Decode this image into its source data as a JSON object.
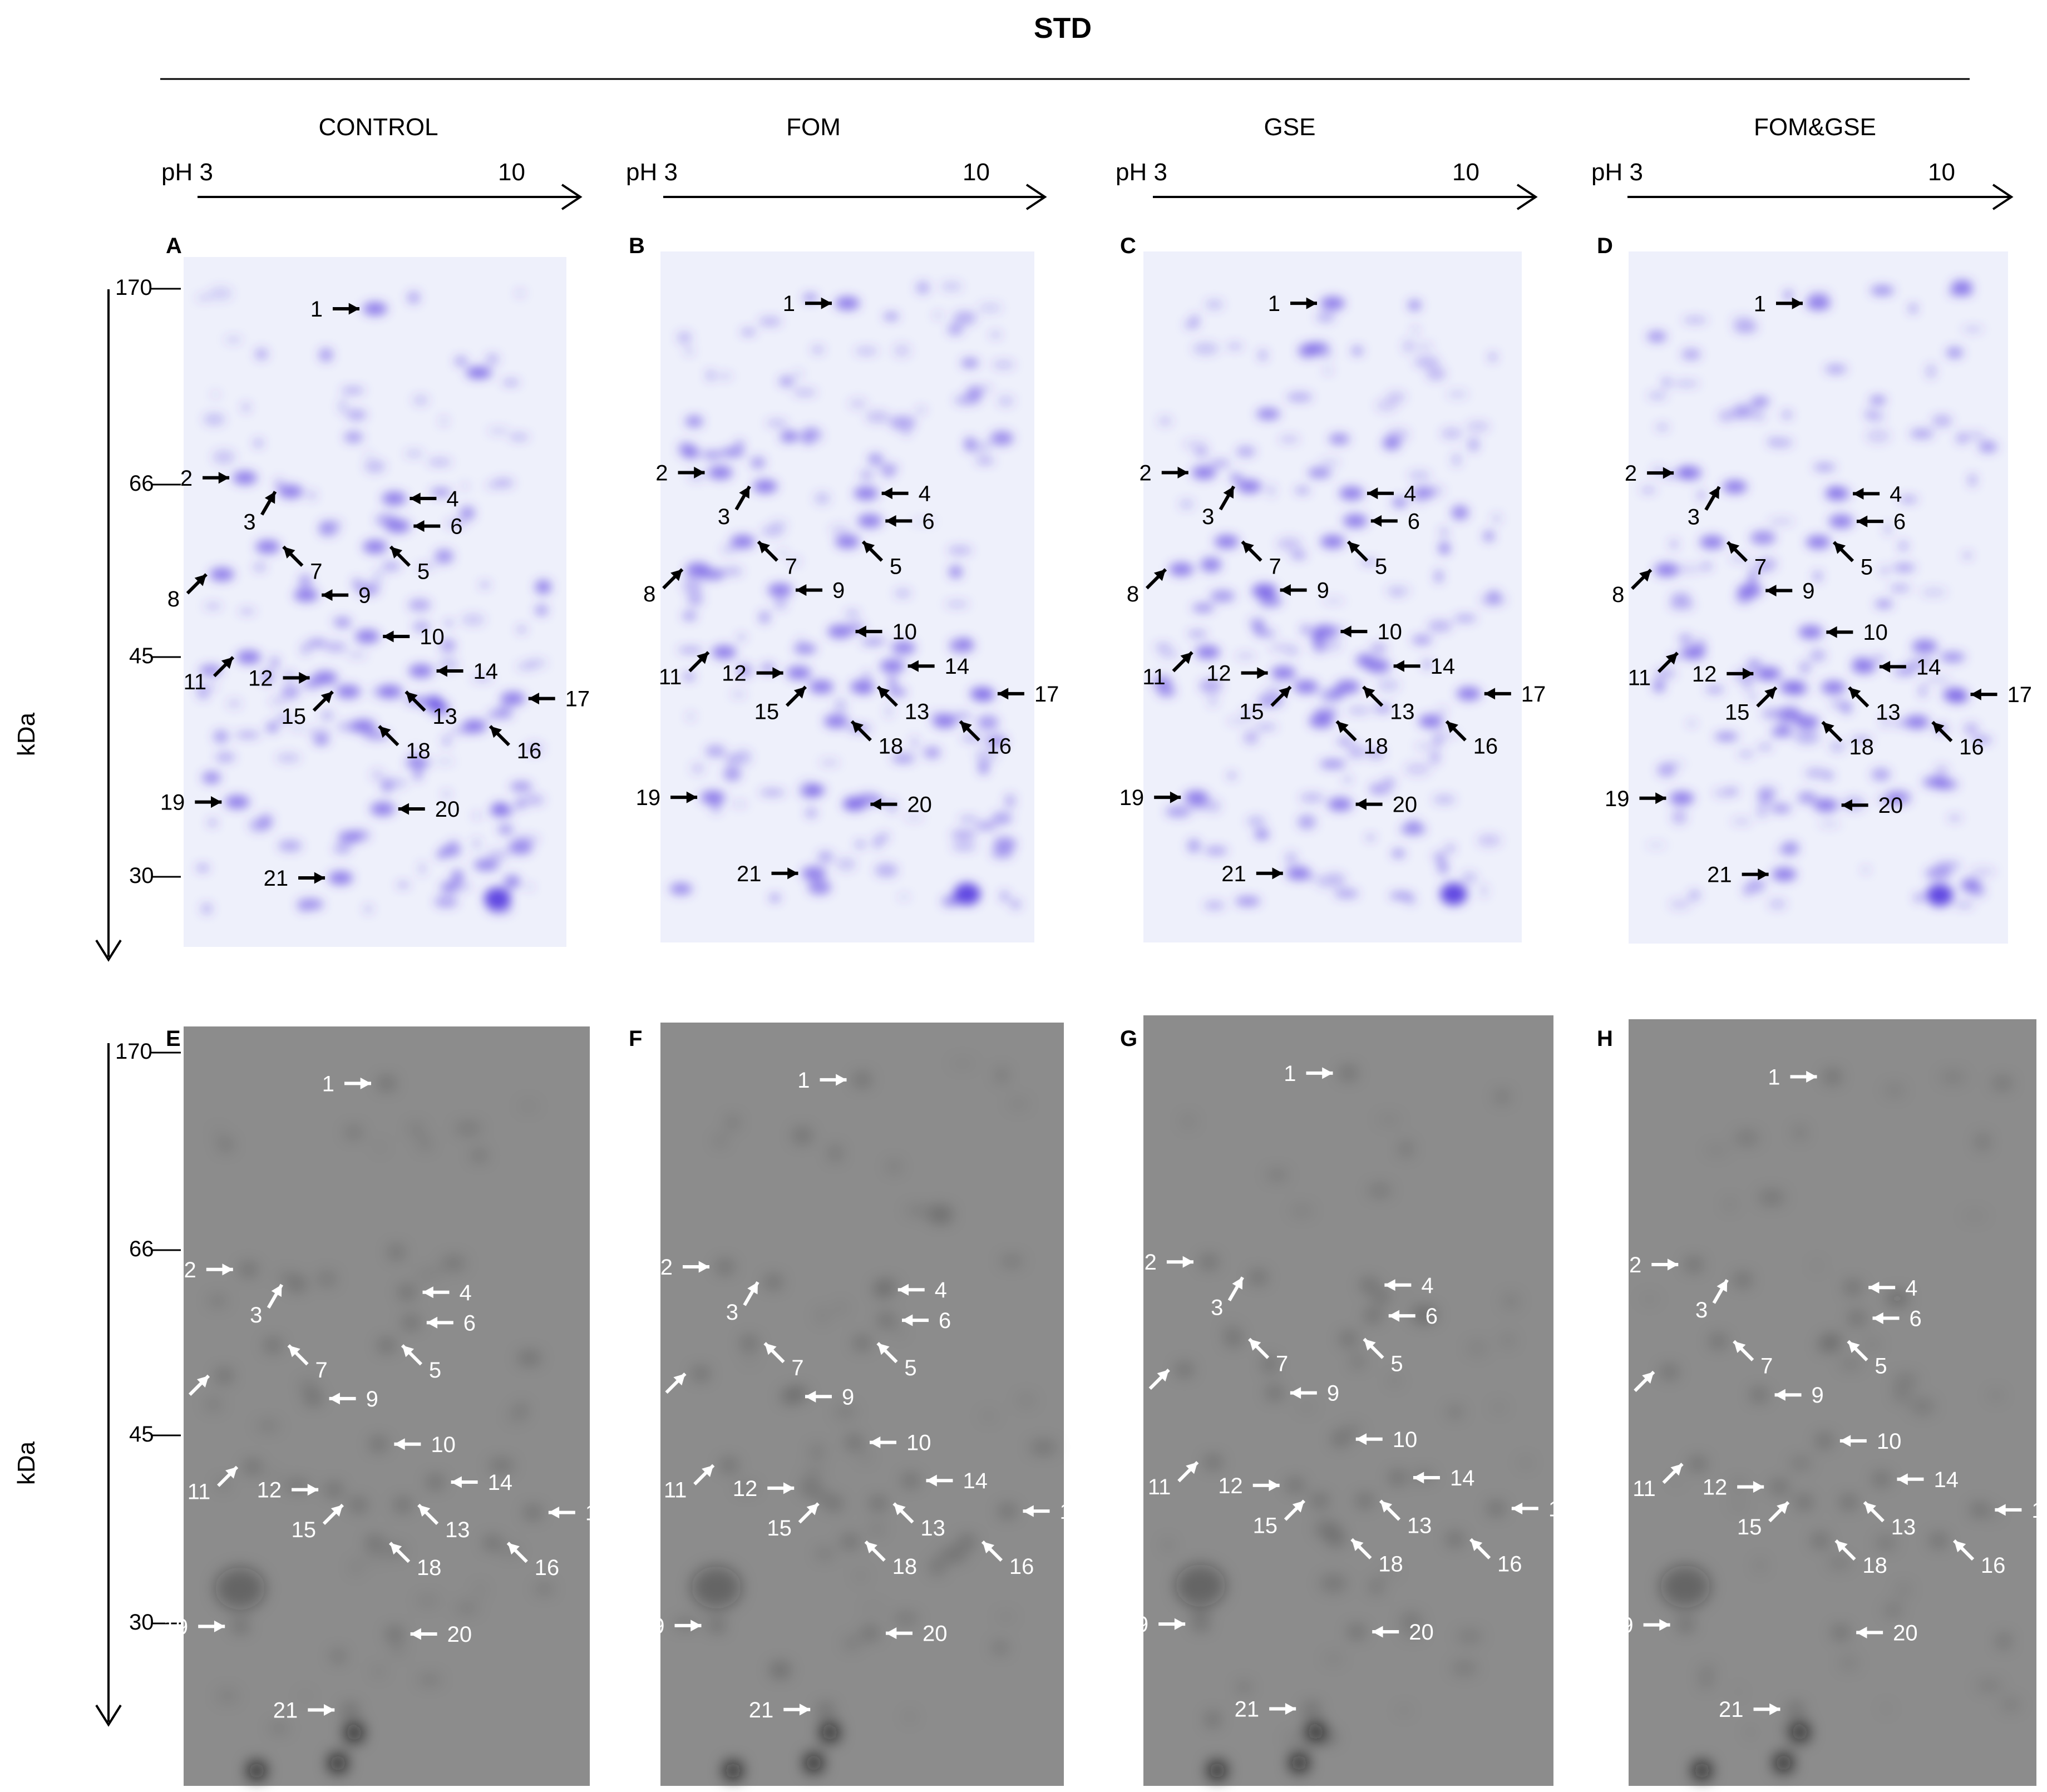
{
  "figure": {
    "title": "STD",
    "ph_start": "pH 3",
    "ph_end": "10",
    "kda_label": "kDa",
    "mw_markers": [
      "170",
      "66",
      "45",
      "30"
    ],
    "panels": [
      {
        "letter": "A",
        "label": "CONTROL",
        "stain": "coomassie"
      },
      {
        "letter": "B",
        "label": "FOM",
        "stain": "coomassie"
      },
      {
        "letter": "C",
        "label": "GSE",
        "stain": "coomassie"
      },
      {
        "letter": "D",
        "label": "FOM&GSE",
        "stain": "coomassie"
      },
      {
        "letter": "E",
        "label": "CONTROL",
        "stain": "fluorescence"
      },
      {
        "letter": "F",
        "label": "FOM",
        "stain": "fluorescence"
      },
      {
        "letter": "G",
        "label": "GSE",
        "stain": "fluorescence"
      },
      {
        "letter": "H",
        "label": "FOM&GSE",
        "stain": "fluorescence"
      }
    ],
    "spot_numbers": [
      "1",
      "2",
      "3",
      "4",
      "5",
      "6",
      "7",
      "8",
      "9",
      "10",
      "11",
      "12",
      "13",
      "14",
      "15",
      "16",
      "17",
      "18",
      "19",
      "20",
      "21"
    ],
    "colors": {
      "coomassie_background": "#eef0fb",
      "coomassie_spot": "#5a3fe0",
      "fluorescence_background": "#8c8c8c",
      "fluorescence_spot": "#111111",
      "black_arrow": "#000000",
      "white_arrow": "#ffffff"
    }
  }
}
